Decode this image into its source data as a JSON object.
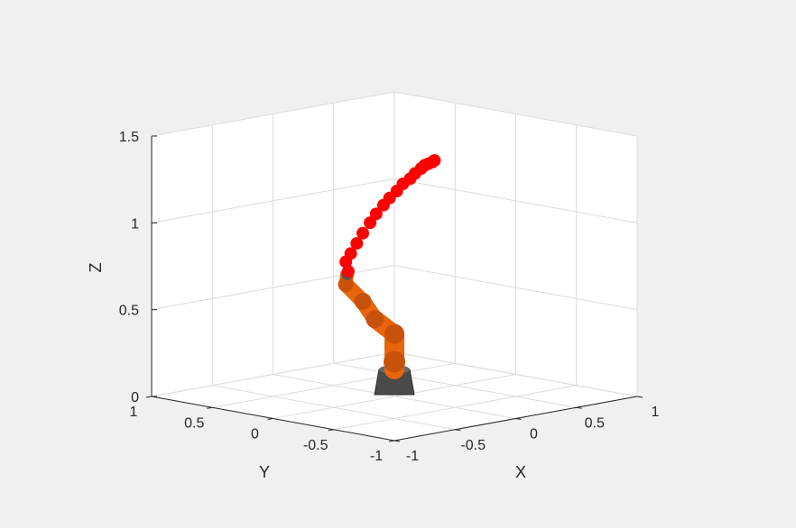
{
  "chart_data": {
    "type": "scatter",
    "projection": "3d",
    "title": "",
    "xlabel": "X",
    "ylabel": "Y",
    "zlabel": "Z",
    "xlim": [
      -1,
      1
    ],
    "ylim": [
      -1,
      1
    ],
    "zlim": [
      0,
      1.5
    ],
    "x_ticks": [
      "-1",
      "-0.5",
      "0",
      "0.5",
      "1"
    ],
    "y_ticks": [
      "-1",
      "-0.5",
      "0",
      "0.5",
      "1"
    ],
    "z_ticks": [
      "0",
      "0.5",
      "1",
      "1.5"
    ],
    "grid": true,
    "series": [
      {
        "marker_color": "#ff0000",
        "points": [
          {
            "x": -0.03,
            "y": 0.35,
            "z": 0.68
          },
          {
            "x": -0.06,
            "y": 0.34,
            "z": 0.74
          },
          {
            "x": -0.05,
            "y": 0.31,
            "z": 0.79
          },
          {
            "x": -0.03,
            "y": 0.28,
            "z": 0.85
          },
          {
            "x": -0.01,
            "y": 0.25,
            "z": 0.91
          },
          {
            "x": 0.02,
            "y": 0.22,
            "z": 0.97
          },
          {
            "x": 0.05,
            "y": 0.2,
            "z": 1.02
          },
          {
            "x": 0.08,
            "y": 0.17,
            "z": 1.07
          },
          {
            "x": 0.11,
            "y": 0.15,
            "z": 1.11
          },
          {
            "x": 0.14,
            "y": 0.12,
            "z": 1.15
          },
          {
            "x": 0.17,
            "y": 0.1,
            "z": 1.19
          },
          {
            "x": 0.2,
            "y": 0.07,
            "z": 1.22
          },
          {
            "x": 0.22,
            "y": 0.05,
            "z": 1.25
          },
          {
            "x": 0.24,
            "y": 0.02,
            "z": 1.28
          },
          {
            "x": 0.25,
            "y": 0.0,
            "z": 1.3
          },
          {
            "x": 0.26,
            "y": -0.02,
            "z": 1.31
          },
          {
            "x": 0.27,
            "y": -0.04,
            "z": 1.32
          },
          {
            "x": 0.28,
            "y": -0.05,
            "z": 1.33
          }
        ]
      }
    ],
    "robot": {
      "link_color": "#e8650c",
      "base_color": "#4a4a4a",
      "joints": [
        {
          "x": 0.0,
          "y": 0.0,
          "z": 0.0
        },
        {
          "x": 0.0,
          "y": 0.0,
          "z": 0.2
        },
        {
          "x": 0.0,
          "y": 0.0,
          "z": 0.36
        },
        {
          "x": 0.02,
          "y": 0.18,
          "z": 0.42
        },
        {
          "x": 0.06,
          "y": 0.32,
          "z": 0.5
        },
        {
          "x": -0.02,
          "y": 0.38,
          "z": 0.6
        },
        {
          "x": -0.03,
          "y": 0.36,
          "z": 0.66
        }
      ]
    }
  }
}
